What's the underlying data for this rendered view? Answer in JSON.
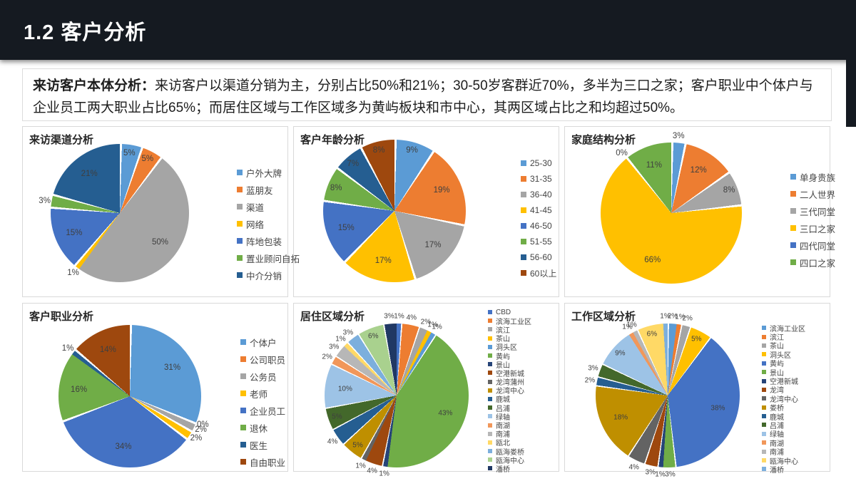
{
  "header": {
    "title": "1.2 客户分析"
  },
  "intro": {
    "lead": "来访客户本体分析：",
    "body": "来访客户以渠道分销为主，分别占比50%和21%；30-50岁客群近70%，多半为三口之家；客户职业中个体户与企业员工两大职业占比65%；而居住区域与工作区域多为黄屿板块和市中心，其两区域占比之和均超过50%。"
  },
  "chart_data": [
    {
      "type": "pie",
      "title": "来访渠道分析",
      "legend_position": "right",
      "slices": [
        {
          "label": "户外大牌",
          "value": 5,
          "color": "#5B9BD5"
        },
        {
          "label": "蓝朋友",
          "value": 5,
          "color": "#ED7D31"
        },
        {
          "label": "渠道",
          "value": 50,
          "color": "#A5A5A5"
        },
        {
          "label": "网络",
          "value": 1,
          "color": "#FFC000"
        },
        {
          "label": "阵地包装",
          "value": 15,
          "color": "#4472C4"
        },
        {
          "label": "置业顾问自拓",
          "value": 3,
          "color": "#70AD47"
        },
        {
          "label": "中介分销",
          "value": 21,
          "color": "#255E91"
        }
      ]
    },
    {
      "type": "pie",
      "title": "客户年龄分析",
      "legend_position": "right",
      "slices": [
        {
          "label": "25-30",
          "value": 9,
          "color": "#5B9BD5"
        },
        {
          "label": "31-35",
          "value": 19,
          "color": "#ED7D31"
        },
        {
          "label": "36-40",
          "value": 17,
          "color": "#A5A5A5"
        },
        {
          "label": "41-45",
          "value": 17,
          "color": "#FFC000"
        },
        {
          "label": "46-50",
          "value": 15,
          "color": "#4472C4"
        },
        {
          "label": "51-55",
          "value": 8,
          "color": "#70AD47"
        },
        {
          "label": "56-60",
          "value": 7,
          "color": "#255E91"
        },
        {
          "label": "60以上",
          "value": 8,
          "color": "#9E480E"
        }
      ]
    },
    {
      "type": "pie",
      "title": "家庭结构分析",
      "legend_position": "right",
      "slices": [
        {
          "label": "单身贵族",
          "value": 3,
          "color": "#5B9BD5"
        },
        {
          "label": "二人世界",
          "value": 12,
          "color": "#ED7D31"
        },
        {
          "label": "三代同堂",
          "value": 8,
          "color": "#A5A5A5"
        },
        {
          "label": "三口之家",
          "value": 66,
          "color": "#FFC000"
        },
        {
          "label": "四代同堂",
          "value": 0,
          "color": "#4472C4"
        },
        {
          "label": "四口之家",
          "value": 11,
          "color": "#70AD47"
        }
      ]
    },
    {
      "type": "pie",
      "title": "客户职业分析",
      "legend_position": "right",
      "slices": [
        {
          "label": "个体户",
          "value": 31,
          "color": "#5B9BD5"
        },
        {
          "label": "公司职员",
          "value": 0,
          "color": "#ED7D31"
        },
        {
          "label": "公务员",
          "value": 2,
          "color": "#A5A5A5"
        },
        {
          "label": "老师",
          "value": 2,
          "color": "#FFC000"
        },
        {
          "label": "企业员工",
          "value": 34,
          "color": "#4472C4"
        },
        {
          "label": "退休",
          "value": 16,
          "color": "#70AD47"
        },
        {
          "label": "医生",
          "value": 1,
          "color": "#255E91"
        },
        {
          "label": "自由职业",
          "value": 14,
          "color": "#9E480E"
        }
      ]
    },
    {
      "type": "pie",
      "title": "居住区域分析",
      "legend_position": "right",
      "slices": [
        {
          "label": "CBD",
          "value": 1,
          "color": "#4472C4"
        },
        {
          "label": "滨海工业区",
          "value": 4,
          "color": "#ED7D31"
        },
        {
          "label": "滨江",
          "value": 2,
          "color": "#A5A5A5"
        },
        {
          "label": "茶山",
          "value": 1,
          "color": "#FFC000"
        },
        {
          "label": "洞头区",
          "value": 1,
          "color": "#5B9BD5"
        },
        {
          "label": "黄屿",
          "value": 43,
          "color": "#70AD47"
        },
        {
          "label": "景山",
          "value": 1,
          "color": "#264478"
        },
        {
          "label": "空港新城",
          "value": 4,
          "color": "#9E480E"
        },
        {
          "label": "龙湾蒲州",
          "value": 1,
          "color": "#636363"
        },
        {
          "label": "龙湾中心",
          "value": 5,
          "color": "#BF8F00"
        },
        {
          "label": "鹿城",
          "value": 4,
          "color": "#255E91"
        },
        {
          "label": "吕浦",
          "value": 5,
          "color": "#43682B"
        },
        {
          "label": "绿轴",
          "value": 10,
          "color": "#9DC3E6"
        },
        {
          "label": "南湖",
          "value": 2,
          "color": "#F1975A"
        },
        {
          "label": "南浦",
          "value": 3,
          "color": "#B7B7B7"
        },
        {
          "label": "瓯北",
          "value": 1,
          "color": "#FFD966"
        },
        {
          "label": "瓯海娄桥",
          "value": 3,
          "color": "#7CAFDD"
        },
        {
          "label": "瓯海中心",
          "value": 6,
          "color": "#A9D18E"
        },
        {
          "label": "潘桥",
          "value": 3,
          "color": "#203864"
        }
      ]
    },
    {
      "type": "pie",
      "title": "工作区域分析",
      "legend_position": "right",
      "slices": [
        {
          "label": "滨海工业区",
          "value": 2,
          "color": "#5B9BD5"
        },
        {
          "label": "滨江",
          "value": 1,
          "color": "#ED7D31"
        },
        {
          "label": "茶山",
          "value": 2,
          "color": "#A5A5A5"
        },
        {
          "label": "洞头区",
          "value": 5,
          "color": "#FFC000"
        },
        {
          "label": "黄屿",
          "value": 38,
          "color": "#4472C4"
        },
        {
          "label": "景山",
          "value": 3,
          "color": "#70AD47"
        },
        {
          "label": "空港新城",
          "value": 1,
          "color": "#264478"
        },
        {
          "label": "龙湾",
          "value": 3,
          "color": "#9E480E"
        },
        {
          "label": "龙湾中心",
          "value": 4,
          "color": "#636363"
        },
        {
          "label": "娄桥",
          "value": 18,
          "color": "#BF8F00"
        },
        {
          "label": "鹿城",
          "value": 2,
          "color": "#255E91"
        },
        {
          "label": "吕浦",
          "value": 3,
          "color": "#43682B"
        },
        {
          "label": "绿轴",
          "value": 9,
          "color": "#9DC3E6"
        },
        {
          "label": "南湖",
          "value": 1,
          "color": "#F1975A"
        },
        {
          "label": "南浦",
          "value": 1,
          "color": "#B7B7B7"
        },
        {
          "label": "瓯海中心",
          "value": 6,
          "color": "#FFD966"
        },
        {
          "label": "潘桥",
          "value": 1,
          "color": "#7CAFDD"
        }
      ]
    }
  ]
}
